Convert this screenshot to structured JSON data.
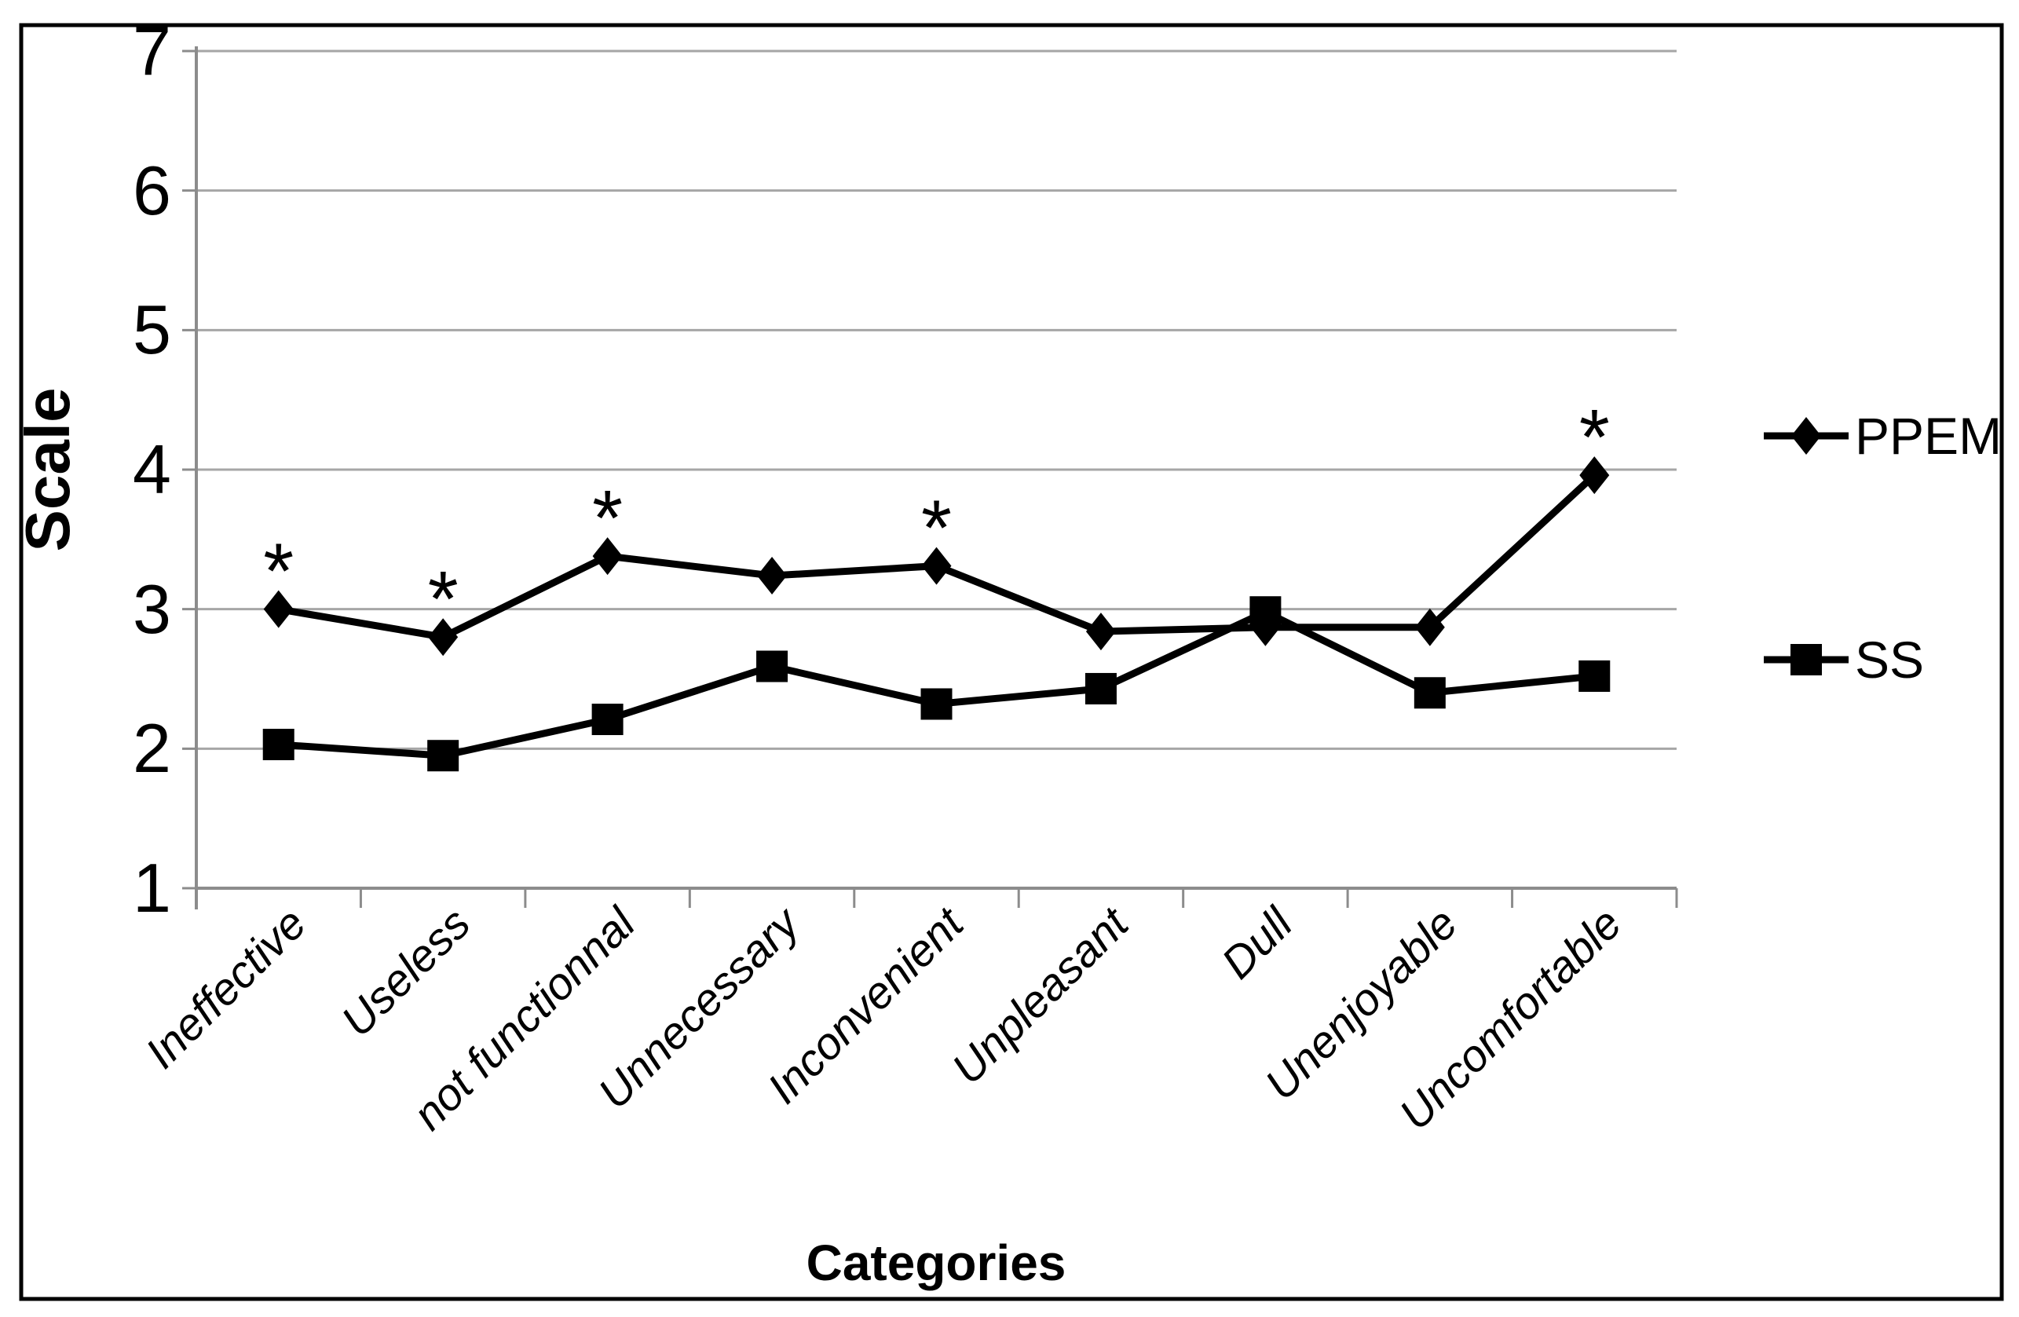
{
  "figure": {
    "background": "#ffffff",
    "border_color": "#000000"
  },
  "chart_data": {
    "type": "line",
    "title": "",
    "xlabel": "Categories",
    "ylabel": "Scale",
    "ylim": [
      1,
      7
    ],
    "yticks": [
      1,
      2,
      3,
      4,
      5,
      6,
      7
    ],
    "grid": "horizontal",
    "legend_position": "right",
    "significance_marker": "*",
    "categories": [
      "Ineffective",
      "Useless",
      "not functionnal",
      "Unnecessary",
      "Inconvenient",
      "Unpleasant",
      "Dull",
      "Unenjoyable",
      "Uncomfortable"
    ],
    "series": [
      {
        "name": "PPEM",
        "marker": "diamond",
        "color": "#000000",
        "values": [
          3.0,
          2.8,
          3.38,
          3.24,
          3.31,
          2.84,
          2.87,
          2.87,
          3.96
        ],
        "significant": [
          true,
          true,
          true,
          false,
          true,
          false,
          false,
          false,
          true
        ]
      },
      {
        "name": "SS",
        "marker": "square",
        "color": "#000000",
        "values": [
          2.03,
          1.95,
          2.21,
          2.59,
          2.32,
          2.43,
          2.98,
          2.4,
          2.52
        ],
        "significant": [
          false,
          false,
          false,
          false,
          false,
          false,
          false,
          false,
          false
        ]
      }
    ],
    "colors": {
      "gridline": "#a6a6a6",
      "axis": "#8c8c8c",
      "series": "#000000"
    }
  }
}
